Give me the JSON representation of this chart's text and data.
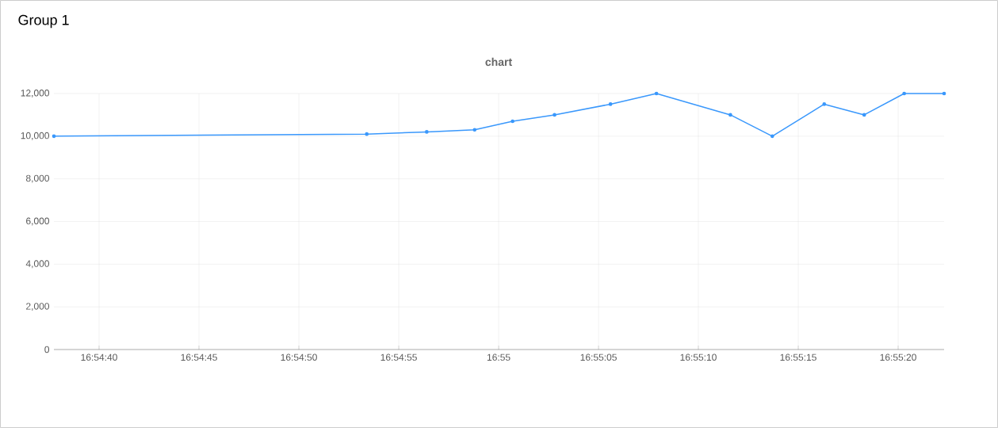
{
  "chart_data": {
    "type": "line",
    "title": "Group 1",
    "subtitle": "chart",
    "x": [
      16.910483,
      16.914833,
      16.915667,
      16.916333,
      16.916861,
      16.917444,
      16.918222,
      16.918861,
      16.919889,
      16.920472,
      16.921194,
      16.92175,
      16.922306,
      16.922861
    ],
    "series": [
      {
        "color": "#3a98fc",
        "values": [
          10000,
          10100,
          10200,
          10300,
          10700,
          11000,
          11500,
          12000,
          11000,
          10000,
          11500,
          11000,
          12000,
          12000
        ]
      }
    ],
    "xlim": [
      16.910483,
      16.922861
    ],
    "xticks": [
      {
        "value": 16.911111,
        "label": "16:54:40"
      },
      {
        "value": 16.9125,
        "label": "16:54:45"
      },
      {
        "value": 16.913889,
        "label": "16:54:50"
      },
      {
        "value": 16.915278,
        "label": "16:54:55"
      },
      {
        "value": 16.916667,
        "label": "16:55"
      },
      {
        "value": 16.918056,
        "label": "16:55:05"
      },
      {
        "value": 16.919444,
        "label": "16:55:10"
      },
      {
        "value": 16.920833,
        "label": "16:55:15"
      },
      {
        "value": 16.922222,
        "label": "16:55:20"
      }
    ],
    "ylim": [
      0,
      12000
    ],
    "yticks": [
      0,
      {
        "value": 2000,
        "label": "2,000"
      },
      {
        "value": 4000,
        "label": "4,000"
      },
      {
        "value": 6000,
        "label": "6,000"
      },
      {
        "value": 8000,
        "label": "8,000"
      },
      {
        "value": 10000,
        "label": "10,000"
      },
      {
        "value": 12000,
        "label": "12,000"
      }
    ],
    "grid": true,
    "marker": "circle",
    "line_style": "solid"
  }
}
